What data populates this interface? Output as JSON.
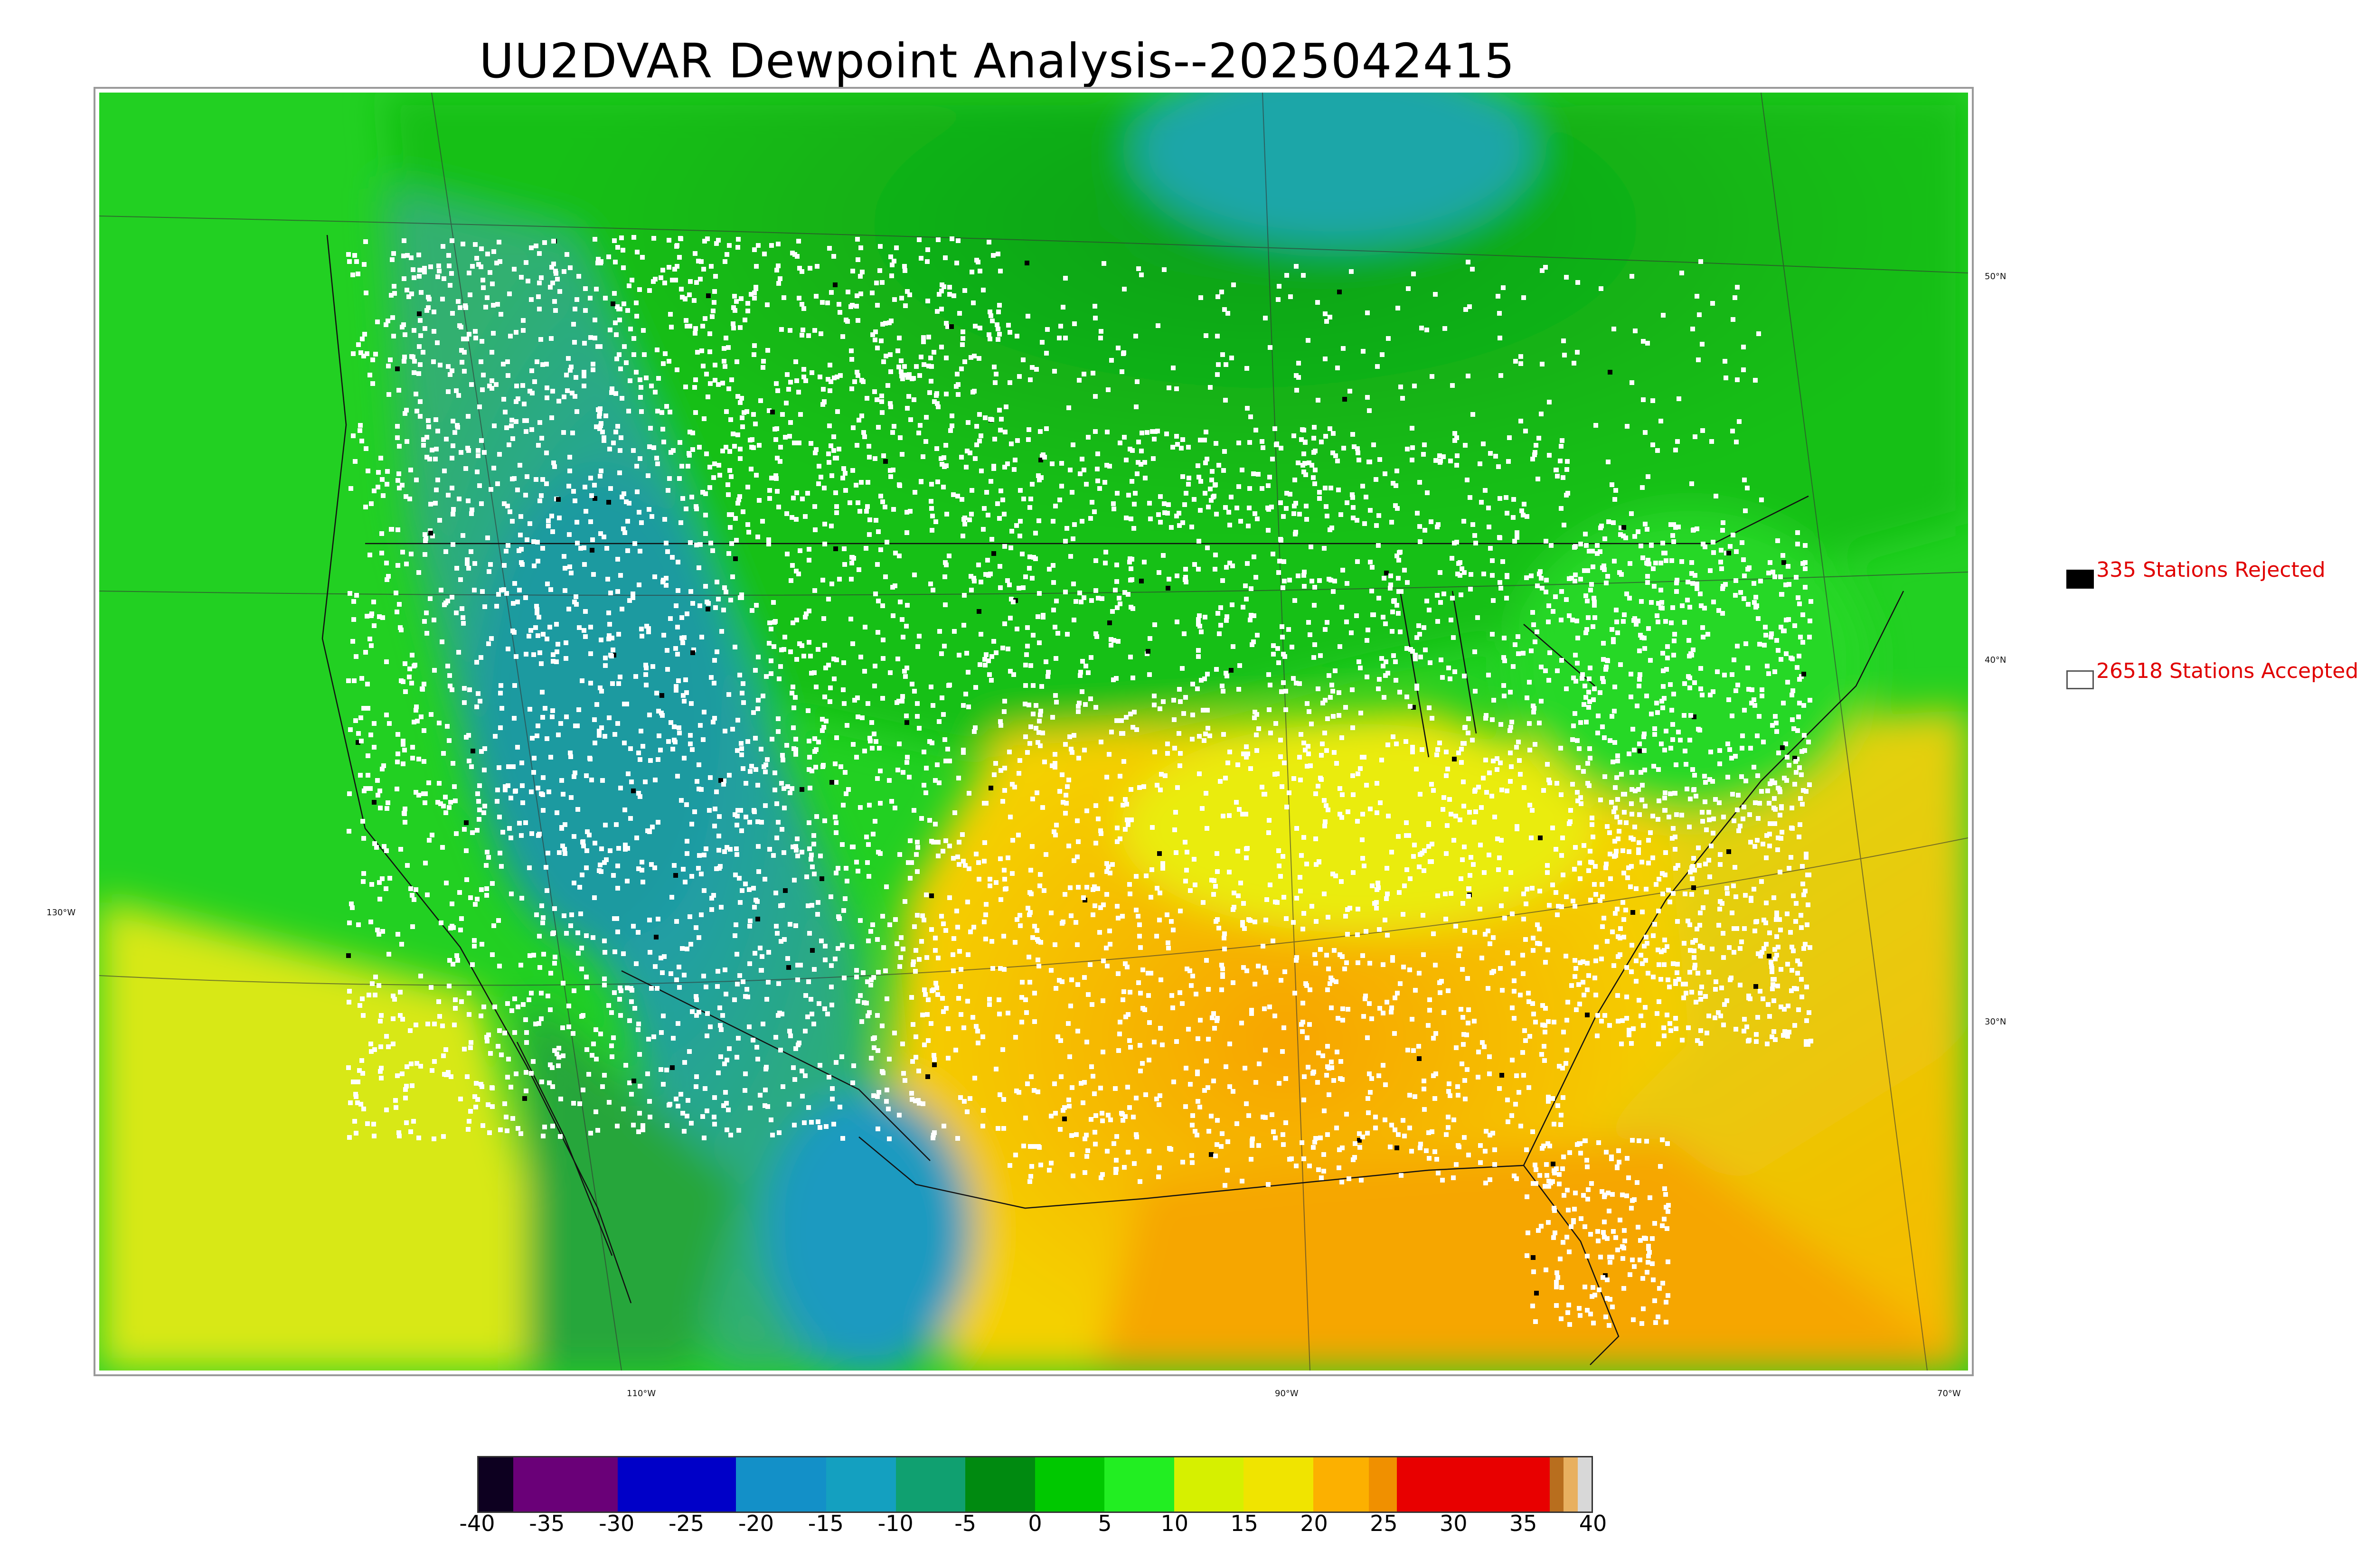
{
  "title": "UU2DVAR Dewpoint Analysis--2025042415",
  "graticule_labels": {
    "lat": [
      "50°N",
      "40°N",
      "30°N"
    ],
    "lon": [
      "130°W",
      "110°W",
      "90°W",
      "70°W"
    ]
  },
  "legend": {
    "rejected": {
      "label": "335 Stations Rejected",
      "count": 335,
      "swatch_color": "#000000"
    },
    "accepted": {
      "label": "26518 Stations Accepted",
      "count": 26518,
      "swatch_color": "#ffffff"
    }
  },
  "colorbar": {
    "ticks": [
      "-40",
      "-35",
      "-30",
      "-25",
      "-20",
      "-15",
      "-10",
      "-5",
      "0",
      "5",
      "10",
      "15",
      "20",
      "25",
      "30",
      "35",
      "40"
    ],
    "range": [
      -40,
      40
    ],
    "stops": [
      {
        "from": -40,
        "to": -37.5,
        "color": "#0d0020"
      },
      {
        "from": -37.5,
        "to": -30,
        "color": "#6a0078"
      },
      {
        "from": -30,
        "to": -21.5,
        "color": "#0000c8"
      },
      {
        "from": -21.5,
        "to": -15,
        "color": "#1390c8"
      },
      {
        "from": -15,
        "to": -10,
        "color": "#14a0c0"
      },
      {
        "from": -10,
        "to": -5,
        "color": "#10a070"
      },
      {
        "from": -5,
        "to": 0,
        "color": "#008a10"
      },
      {
        "from": 0,
        "to": 5,
        "color": "#00c800"
      },
      {
        "from": 5,
        "to": 10,
        "color": "#22ee22"
      },
      {
        "from": 10,
        "to": 15,
        "color": "#d6f000"
      },
      {
        "from": 15,
        "to": 20,
        "color": "#f0e400"
      },
      {
        "from": 20,
        "to": 24,
        "color": "#fcb000"
      },
      {
        "from": 24,
        "to": 26,
        "color": "#f09000"
      },
      {
        "from": 26,
        "to": 37,
        "color": "#e80000"
      },
      {
        "from": 37,
        "to": 38,
        "color": "#b86e1e"
      },
      {
        "from": 38,
        "to": 39,
        "color": "#e8b060"
      },
      {
        "from": 39,
        "to": 40,
        "color": "#d8d8d8"
      }
    ]
  },
  "field_colors": {
    "ocean_north": "#22d422",
    "canada": "#10b020",
    "hudson": "#20a0a0",
    "rockies_dry": "#2ea0a0",
    "mexico_dry": "#20a0b8",
    "east_moist": "#eaec10",
    "south_humid": "#f8b400",
    "gulf": "#f8a800",
    "pacific_south": "#d8e818",
    "atlantic": "#f0d020",
    "station_accepted": "#ffffff",
    "station_rejected": "#000000"
  }
}
